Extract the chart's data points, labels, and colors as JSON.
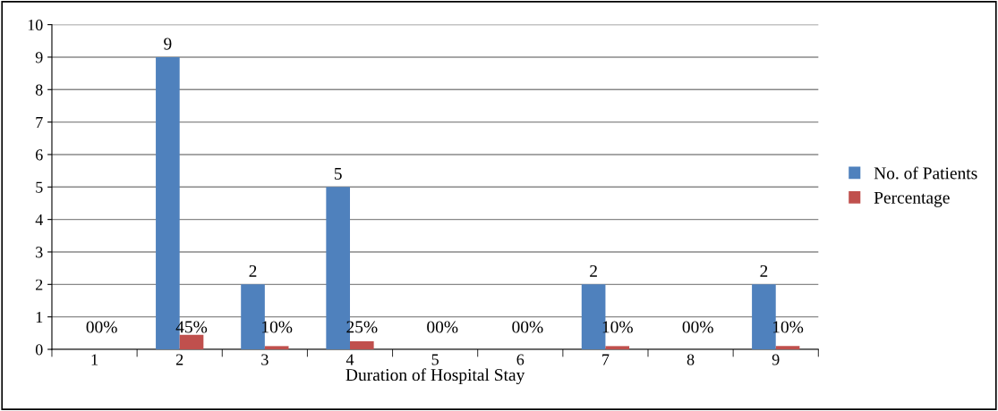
{
  "chart_data": {
    "type": "bar",
    "xlabel": "Duration of Hospital Stay",
    "categories": [
      "1",
      "2",
      "3",
      "4",
      "5",
      "6",
      "7",
      "8",
      "9"
    ],
    "series": [
      {
        "name": "No. of Patients",
        "color": "#4f81bd",
        "values": [
          0,
          9,
          2,
          5,
          0,
          0,
          2,
          0,
          2
        ],
        "value_labels": [
          "0",
          "9",
          "2",
          "5",
          "0",
          "0",
          "2",
          "0",
          "2"
        ]
      },
      {
        "name": "Percentage",
        "color": "#c0504d",
        "values": [
          0,
          0.45,
          0.1,
          0.25,
          0,
          0,
          0.1,
          0,
          0.1
        ],
        "value_labels": [
          "0%",
          "45%",
          "10%",
          "25%",
          "0%",
          "0%",
          "10%",
          "0%",
          "10%"
        ]
      }
    ],
    "ylim": [
      0,
      10
    ],
    "yticks": [
      0,
      1,
      2,
      3,
      4,
      5,
      6,
      7,
      8,
      9,
      10
    ],
    "grid": "y",
    "legend": "right"
  }
}
